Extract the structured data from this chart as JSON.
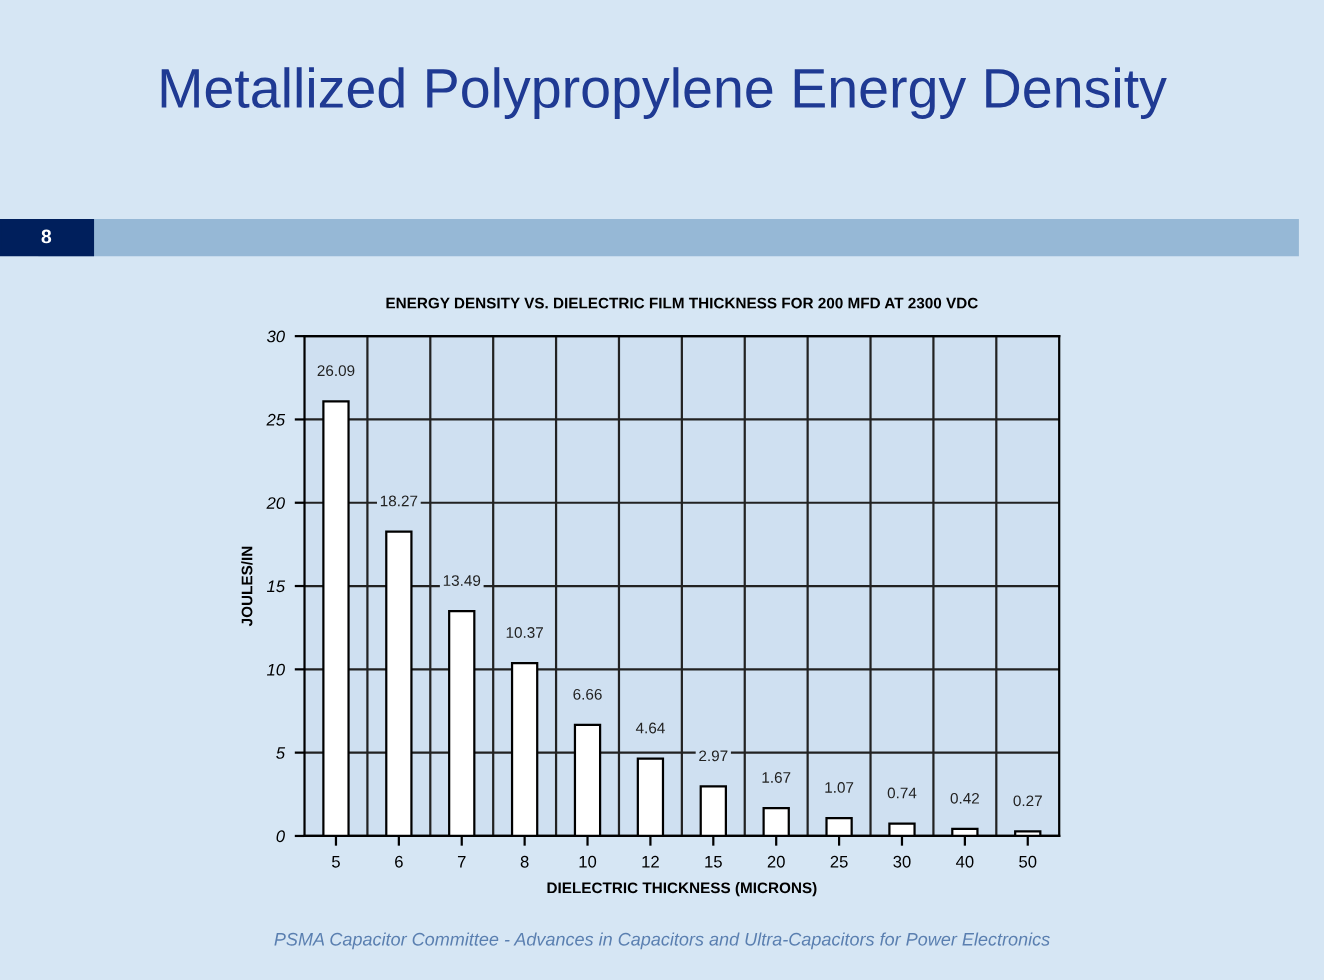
{
  "chart_data": {
    "type": "bar",
    "title": "Metallized Polypropylene Energy Density",
    "subtitle": "ENERGY DENSITY VS. DIELECTRIC FILM THICKNESS FOR 200 MFD AT 2300 VDC",
    "xlabel": "DIELECTRIC THICKNESS (MICRONS)",
    "ylabel": "JOULES/IN",
    "categories": [
      "5",
      "6",
      "7",
      "8",
      "10",
      "12",
      "15",
      "20",
      "25",
      "30",
      "40",
      "50"
    ],
    "values": [
      26.09,
      18.27,
      13.49,
      10.37,
      6.66,
      4.64,
      2.97,
      1.67,
      1.07,
      0.74,
      0.42,
      0.27
    ],
    "color": "#ffffff",
    "ylim": [
      0,
      30
    ],
    "yticks": [
      0,
      5,
      10,
      15,
      20,
      25,
      30
    ],
    "grid": true,
    "data_labels": true,
    "annotations": [
      "8",
      "PSMA Capacitor Committee - Advances in Capacitors and Ultra-Capacitors for Power Electronics"
    ]
  }
}
